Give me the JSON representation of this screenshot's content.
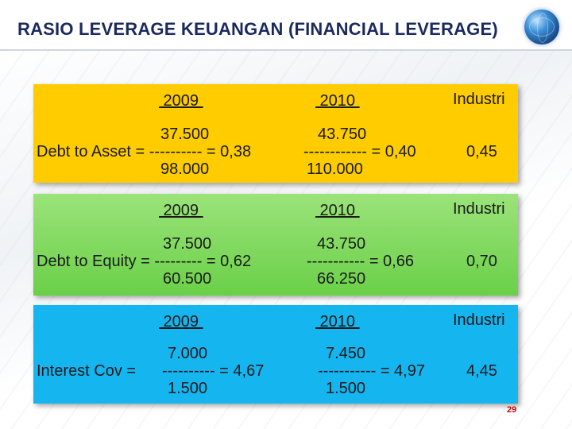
{
  "slide": {
    "title": "RASIO LEVERAGE KEUANGAN (FINANCIAL LEVERAGE)",
    "page_number": "29"
  },
  "headers": {
    "year1": " 2009 ",
    "year2": " 2010 ",
    "industry": "Industri"
  },
  "panels": [
    {
      "color": "#ffcc00",
      "label": "Debt to Asset = ---------- = 0,38",
      "y2009": {
        "numerator": "37.500",
        "denominator": "98.000"
      },
      "y2010": {
        "numerator": "43.750",
        "expr": "------------ = 0,40",
        "denominator": "110.000"
      },
      "industry_value": "0,45"
    },
    {
      "color": "#7ad95a",
      "label": "Debt to Equity = --------- = 0,62",
      "y2009": {
        "numerator": "37.500",
        "denominator": "60.500"
      },
      "y2010": {
        "numerator": "43.750",
        "expr": "----------- = 0,66",
        "denominator": "66.250"
      },
      "industry_value": "0,70"
    },
    {
      "color": "#15b5f0",
      "label": "Interest Cov =",
      "y2009": {
        "numerator": "7.000",
        "expr": "---------- = 4,67",
        "denominator": "1.500"
      },
      "y2010": {
        "numerator": "7.450",
        "expr": "----------- = 4,97",
        "denominator": "1.500"
      },
      "industry_value": "4,45"
    }
  ]
}
